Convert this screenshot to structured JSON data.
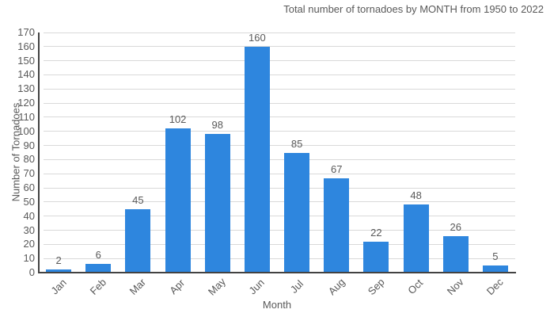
{
  "chart_data": {
    "type": "bar",
    "title": "Total number of tornadoes by MONTH from 1950 to 2022",
    "xlabel": "Month",
    "ylabel": "Number of Tornadoes",
    "categories": [
      "Jan",
      "Feb",
      "Mar",
      "Apr",
      "May",
      "Jun",
      "Jul",
      "Aug",
      "Sep",
      "Oct",
      "Nov",
      "Dec"
    ],
    "values": [
      2,
      6,
      45,
      102,
      98,
      160,
      85,
      67,
      22,
      48,
      26,
      5
    ],
    "ylim": [
      0,
      170
    ],
    "ytick_step": 10,
    "grid": true,
    "legend_position": "none",
    "value_labels": true,
    "colors": {
      "bar": "#2E86DE",
      "axis": "#424242",
      "grid": "#d9d9d9",
      "text": "#595959"
    }
  }
}
